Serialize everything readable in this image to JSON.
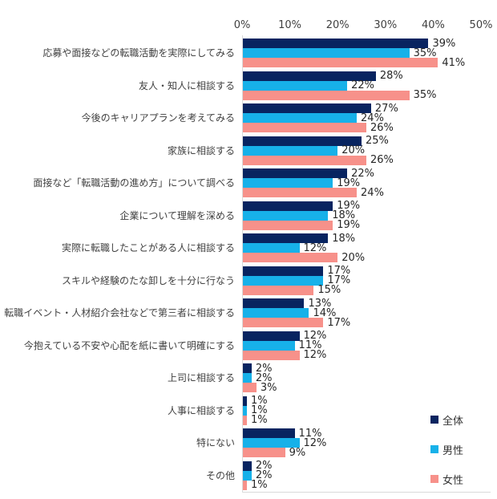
{
  "chart_data": {
    "type": "bar",
    "orientation": "horizontal",
    "title": "",
    "categories": [
      "応募や面接などの転職活動を実際にしてみる",
      "友人・知人に相談する",
      "今後のキャリアプランを考えてみる",
      "家族に相談する",
      "面接など「転職活動の進め方」について調べる",
      "企業について理解を深める",
      "実際に転職したことがある人に相談する",
      "スキルや経験のたな卸しを十分に行なう",
      "転職イベント・人材紹介会社などで第三者に相談する",
      "今抱えている不安や心配を紙に書いて明確にする",
      "上司に相談する",
      "人事に相談する",
      "特にない",
      "その他"
    ],
    "series": [
      {
        "name": "全体",
        "color": "#082460",
        "values": [
          39,
          28,
          27,
          25,
          22,
          19,
          18,
          17,
          13,
          12,
          2,
          1,
          11,
          2
        ],
        "labels": [
          "39%",
          "28%",
          "27%",
          "25%",
          "22%",
          "19%",
          "18%",
          "17%",
          "13%",
          "12%",
          "2%",
          "1%",
          "11%",
          "2%"
        ]
      },
      {
        "name": "男性",
        "color": "#17b1e9",
        "values": [
          35,
          22,
          24,
          20,
          19,
          18,
          12,
          17,
          14,
          11,
          2,
          1,
          12,
          2
        ],
        "labels": [
          "35%",
          "22%",
          "24%",
          "20%",
          "19%",
          "18%",
          "12%",
          "17%",
          "14%",
          "11%",
          "2%",
          "1%",
          "12%",
          "2%"
        ]
      },
      {
        "name": "女性",
        "color": "#f7918a",
        "values": [
          41,
          35,
          26,
          26,
          24,
          19,
          20,
          15,
          17,
          12,
          3,
          1,
          9,
          1
        ],
        "labels": [
          "41%",
          "35%",
          "26%",
          "26%",
          "24%",
          "19%",
          "20%",
          "15%",
          "17%",
          "12%",
          "3%",
          "1%",
          "9%",
          "1%"
        ]
      }
    ],
    "value_suffix": "%",
    "xlim": [
      0,
      50
    ],
    "x_ticks": [
      "0%",
      "10%",
      "20%",
      "30%",
      "40%",
      "50%"
    ],
    "grid": "none",
    "legend_position": "bottom-right",
    "colors": {
      "axis_line": "#d9d9d9",
      "tick_text": "#404040",
      "category_text": "#404040",
      "value_text": "#262626",
      "background": "#ffffff"
    }
  }
}
